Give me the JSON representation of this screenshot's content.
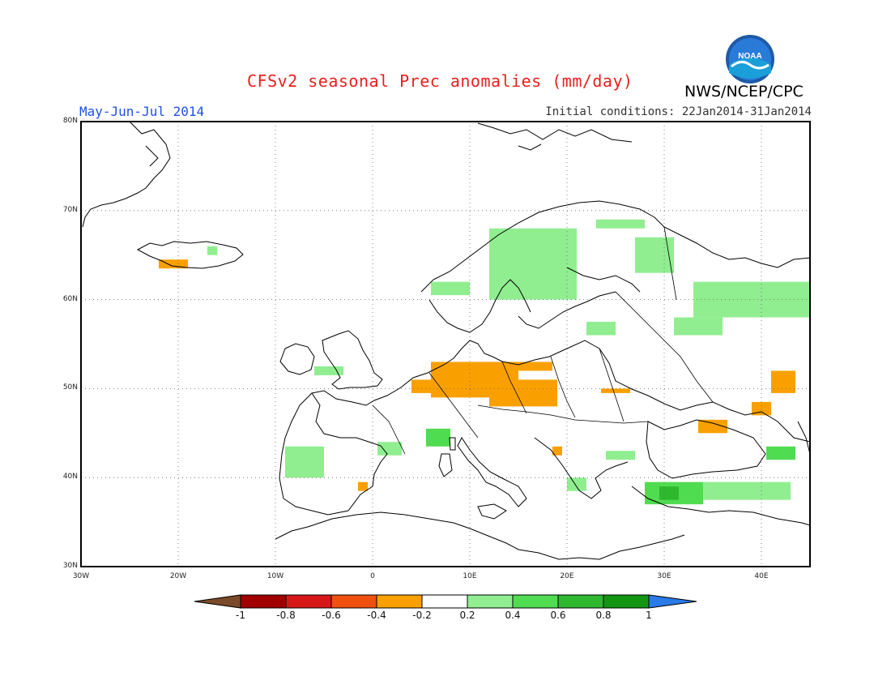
{
  "header": {
    "title": "CFSv2 seasonal Prec anomalies (mm/day)",
    "period": "May-Jun-Jul 2014",
    "initial_conditions": "Initial conditions: 22Jan2014-31Jan2014",
    "agency": "NWS/NCEP/CPC",
    "logo_text": "NOAA"
  },
  "map": {
    "lon_range": [
      -30,
      45
    ],
    "lat_range": [
      30,
      80
    ],
    "lon_labels": [
      "30W",
      "20W",
      "10W",
      "0",
      "10E",
      "20E",
      "30E",
      "40E"
    ],
    "lat_labels": [
      "80N",
      "70N",
      "60N",
      "50N",
      "40N",
      "30N"
    ],
    "grid": "dotted"
  },
  "colorbar": {
    "labels": [
      "-1",
      "-0.8",
      "-0.6",
      "-0.4",
      "-0.2",
      "0.2",
      "0.4",
      "0.6",
      "0.8",
      "1"
    ],
    "colors": {
      "lt_-1": "#7a4a2a",
      "-1_-0.8": "#a00000",
      "-0.8_-0.6": "#d81818",
      "-0.6_-0.4": "#f05010",
      "-0.4_-0.2": "#f9a000",
      "-0.2_0.2": "#ffffff",
      "0.2_0.4": "#90ee90",
      "0.4_0.6": "#50dc50",
      "0.6_0.8": "#2eb82e",
      "0.8_1": "#129612",
      "gt_1": "#2a7ae8"
    }
  },
  "chart_data": {
    "type": "heatmap",
    "title": "CFSv2 seasonal Prec anomalies (mm/day)",
    "period": "May-Jun-Jul 2014",
    "units": "mm/day",
    "xlim": [
      -30,
      45
    ],
    "ylim": [
      30,
      80
    ],
    "regions": [
      {
        "name": "iceland-west",
        "lon": [
          -22,
          -19
        ],
        "lat": [
          63.5,
          64.5
        ],
        "value": -0.3
      },
      {
        "name": "iceland-east",
        "lon": [
          -17,
          -16
        ],
        "lat": [
          65,
          66
        ],
        "value": 0.3
      },
      {
        "name": "belgium-germany-czech",
        "lon": [
          6,
          15
        ],
        "lat": [
          49,
          53
        ],
        "value": -0.3
      },
      {
        "name": "luxembourg",
        "lon": [
          4,
          6
        ],
        "lat": [
          49.5,
          51
        ],
        "value": -0.3
      },
      {
        "name": "poland-south",
        "lon": [
          12,
          19
        ],
        "lat": [
          48,
          51
        ],
        "value": -0.3
      },
      {
        "name": "baltic-coast",
        "lon": [
          15,
          18.5
        ],
        "lat": [
          52,
          53
        ],
        "value": -0.3
      },
      {
        "name": "ukraine-west",
        "lon": [
          23.5,
          26.5
        ],
        "lat": [
          49.5,
          50
        ],
        "value": -0.3
      },
      {
        "name": "russia-south",
        "lon": [
          41,
          43.5
        ],
        "lat": [
          49.5,
          52
        ],
        "value": -0.3
      },
      {
        "name": "caspian-north",
        "lon": [
          39,
          41
        ],
        "lat": [
          47,
          48.5
        ],
        "value": -0.3
      },
      {
        "name": "crimea",
        "lon": [
          33.5,
          36.5
        ],
        "lat": [
          45,
          46.5
        ],
        "value": -0.3
      },
      {
        "name": "balkan-coast",
        "lon": [
          18.5,
          19.5
        ],
        "lat": [
          42.5,
          43.5
        ],
        "value": -0.3
      },
      {
        "name": "spain-east",
        "lon": [
          -1.5,
          -0.5
        ],
        "lat": [
          38.5,
          39.5
        ],
        "value": -0.3
      },
      {
        "name": "norway-coast",
        "lon": [
          6,
          10
        ],
        "lat": [
          60.5,
          62
        ],
        "value": 0.3
      },
      {
        "name": "scandinavia",
        "lon": [
          12,
          21
        ],
        "lat": [
          60,
          68
        ],
        "value": 0.3
      },
      {
        "name": "finland-north",
        "lon": [
          23,
          28
        ],
        "lat": [
          68,
          69
        ],
        "value": 0.3
      },
      {
        "name": "finland-east",
        "lon": [
          27,
          31
        ],
        "lat": [
          63,
          67
        ],
        "value": 0.3
      },
      {
        "name": "russia-north",
        "lon": [
          33,
          45
        ],
        "lat": [
          58,
          62
        ],
        "value": 0.3
      },
      {
        "name": "russia-central",
        "lon": [
          31,
          36
        ],
        "lat": [
          56,
          58
        ],
        "value": 0.3
      },
      {
        "name": "baltics",
        "lon": [
          22,
          25
        ],
        "lat": [
          56,
          57.5
        ],
        "value": 0.3
      },
      {
        "name": "iberia-northwest",
        "lon": [
          -9,
          -5
        ],
        "lat": [
          40,
          43.5
        ],
        "value": 0.3
      },
      {
        "name": "pyrenees",
        "lon": [
          0.5,
          3
        ],
        "lat": [
          42.5,
          44
        ],
        "value": 0.3
      },
      {
        "name": "alps-west",
        "lon": [
          5.5,
          8
        ],
        "lat": [
          43.5,
          45.5
        ],
        "value": 0.5
      },
      {
        "name": "brittany",
        "lon": [
          -6,
          -3
        ],
        "lat": [
          51.5,
          52.5
        ],
        "value": 0.3
      },
      {
        "name": "greece-west",
        "lon": [
          20,
          22
        ],
        "lat": [
          38.5,
          40
        ],
        "value": 0.3
      },
      {
        "name": "bulgaria",
        "lon": [
          24,
          27
        ],
        "lat": [
          42,
          43
        ],
        "value": 0.3
      },
      {
        "name": "turkey-west",
        "lon": [
          28,
          34
        ],
        "lat": [
          37,
          39.5
        ],
        "value": 0.5
      },
      {
        "name": "turkey-central",
        "lon": [
          29.5,
          31.5
        ],
        "lat": [
          37.5,
          39
        ],
        "value": 0.75
      },
      {
        "name": "turkey-east",
        "lon": [
          34,
          43
        ],
        "lat": [
          37.5,
          39.5
        ],
        "value": 0.3
      },
      {
        "name": "caucasus",
        "lon": [
          40.5,
          43.5
        ],
        "lat": [
          42,
          43.5
        ],
        "value": 0.5
      }
    ]
  }
}
